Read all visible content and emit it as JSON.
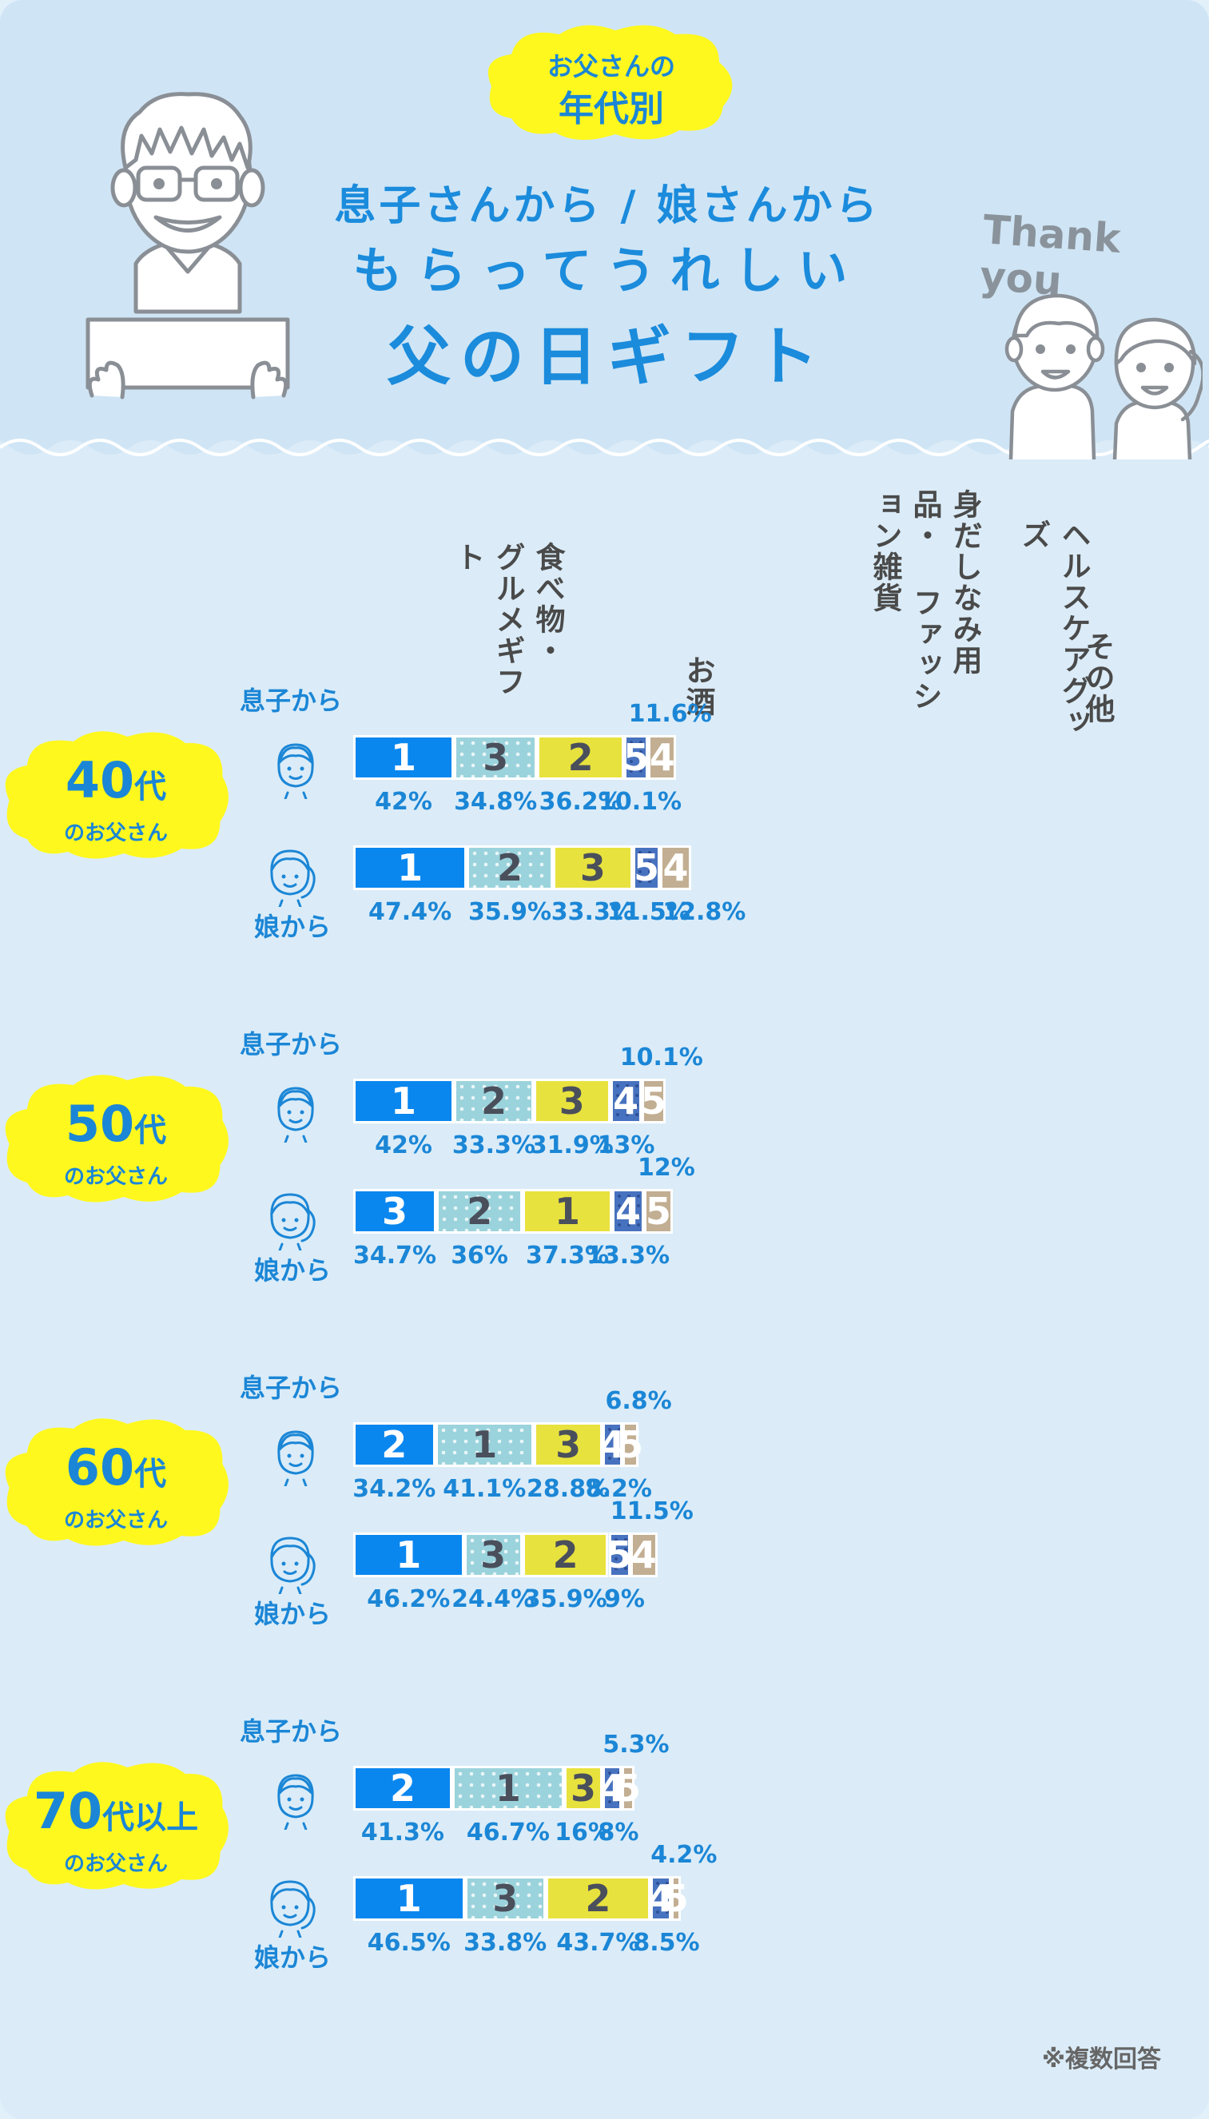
{
  "header": {
    "badge_line1": "お父さんの",
    "badge_line2": "年代別",
    "title_line1": "息子さんから / 娘さんから",
    "title_line2": "もらってうれしい",
    "title_line3": "父の日ギフト",
    "thank_you": "Thank you"
  },
  "categories": [
    {
      "key": "c1",
      "label": "食べ物・\nグルメギフト"
    },
    {
      "key": "c2",
      "label": "お酒"
    },
    {
      "key": "c3",
      "label": "身だしなみ用品・\nファッション雑貨"
    },
    {
      "key": "c4",
      "label": "ヘルスケアグッズ"
    },
    {
      "key": "c5",
      "label": "その他"
    }
  ],
  "from_labels": {
    "son": "息子から",
    "daughter": "娘から"
  },
  "footnote": "※複数回答",
  "colors": {
    "food": "#0a87ef",
    "alcohol": "#9bd3dc",
    "fashion": "#e8e23e",
    "health": "#4772bf",
    "other": "#c2ae92",
    "accent": "#1b86d6",
    "highlight": "#fff81e"
  },
  "chart_data": {
    "type": "bar",
    "orientation": "horizontal-stacked",
    "categories": [
      "食べ物・グルメギフト",
      "お酒",
      "身だしなみ用品・ファッション雑貨",
      "ヘルスケアグッズ",
      "その他"
    ],
    "groups": [
      {
        "age": "40",
        "age_suffix": "代",
        "age_sub": "のお父さん",
        "rows": [
          {
            "from": "息子から",
            "values": [
              42,
              34.8,
              36.2,
              10.1,
              11.6
            ],
            "ranks": [
              1,
              3,
              2,
              5,
              4
            ],
            "labels": [
              "42%",
              "34.8%",
              "36.2%",
              "10.1%",
              "11.6%"
            ]
          },
          {
            "from": "娘から",
            "values": [
              47.4,
              35.9,
              33.3,
              11.5,
              12.8
            ],
            "ranks": [
              1,
              2,
              3,
              5,
              4
            ],
            "labels": [
              "47.4%",
              "35.9%",
              "33.3%",
              "11.5%",
              "12.8%"
            ]
          }
        ]
      },
      {
        "age": "50",
        "age_suffix": "代",
        "age_sub": "のお父さん",
        "rows": [
          {
            "from": "息子から",
            "values": [
              42,
              33.3,
              31.9,
              13,
              10.1
            ],
            "ranks": [
              1,
              2,
              3,
              4,
              5
            ],
            "labels": [
              "42%",
              "33.3%",
              "31.9%",
              "13%",
              "10.1%"
            ]
          },
          {
            "from": "娘から",
            "values": [
              34.7,
              36,
              37.3,
              13.3,
              12
            ],
            "ranks": [
              3,
              2,
              1,
              4,
              5
            ],
            "labels": [
              "34.7%",
              "36%",
              "37.3%",
              "13.3%",
              "12%"
            ]
          }
        ]
      },
      {
        "age": "60",
        "age_suffix": "代",
        "age_sub": "のお父さん",
        "rows": [
          {
            "from": "息子から",
            "values": [
              34.2,
              41.1,
              28.8,
              8.2,
              6.8
            ],
            "ranks": [
              2,
              1,
              3,
              4,
              5
            ],
            "labels": [
              "34.2%",
              "41.1%",
              "28.8%",
              "8.2%",
              "6.8%"
            ]
          },
          {
            "from": "娘から",
            "values": [
              46.2,
              24.4,
              35.9,
              9,
              11.5
            ],
            "ranks": [
              1,
              3,
              2,
              5,
              4
            ],
            "labels": [
              "46.2%",
              "24.4%",
              "35.9%",
              "9%",
              "11.5%"
            ]
          }
        ]
      },
      {
        "age": "70",
        "age_suffix": "代以上",
        "age_sub": "のお父さん",
        "rows": [
          {
            "from": "息子から",
            "values": [
              41.3,
              46.7,
              16,
              8,
              5.3
            ],
            "ranks": [
              2,
              1,
              3,
              4,
              5
            ],
            "labels": [
              "41.3%",
              "46.7%",
              "16%",
              "8%",
              "5.3%"
            ]
          },
          {
            "from": "娘から",
            "values": [
              46.5,
              33.8,
              43.7,
              8.5,
              4.2
            ],
            "ranks": [
              1,
              3,
              2,
              4,
              5
            ],
            "labels": [
              "46.5%",
              "33.8%",
              "43.7%",
              "8.5%",
              "4.2%"
            ]
          }
        ]
      }
    ]
  }
}
